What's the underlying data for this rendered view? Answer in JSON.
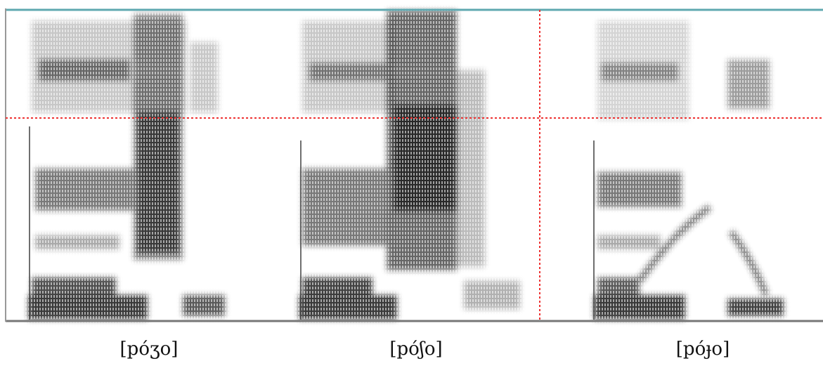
{
  "panels": [
    {
      "label": "[póʒo]"
    },
    {
      "label": "[póʃo]"
    },
    {
      "label": "[póɟo]"
    }
  ]
}
